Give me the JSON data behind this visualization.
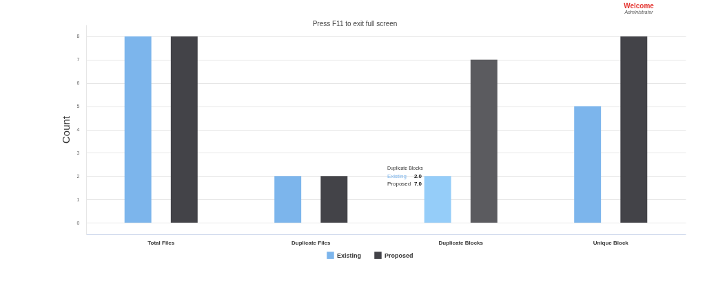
{
  "chart_data": {
    "type": "bar",
    "categories": [
      "Total Files",
      "Duplicate Files",
      "Duplicate Blocks",
      "Unique Block"
    ],
    "series": [
      {
        "name": "Existing",
        "color": "#7cb5ec",
        "colors": [
          "#7cb5ec",
          "#7cb5ec",
          "#95cdf9",
          "#7cb5ec"
        ],
        "values": [
          8,
          2,
          2,
          5
        ]
      },
      {
        "name": "Proposed",
        "color": "#434348",
        "colors": [
          "#434348",
          "#434348",
          "#5b5b5f",
          "#434348"
        ],
        "values": [
          8,
          2,
          7,
          8
        ]
      }
    ],
    "ylabel": "Count",
    "ylim": [
      -0.5,
      8.5
    ],
    "yticks": [
      0,
      1,
      2,
      3,
      4,
      5,
      6,
      7,
      8
    ],
    "grid": "y",
    "legend": "bottom",
    "annotations": [
      "Duplicate Blocks",
      "Existing",
      "2.0",
      "Proposed",
      "7.0",
      "Welcome",
      "Administrator",
      "Press F11 to exit full screen"
    ]
  }
}
